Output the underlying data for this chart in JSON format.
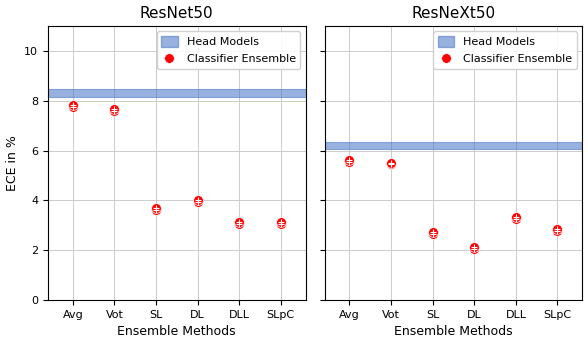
{
  "resnet50": {
    "title": "ResNet50",
    "band_low": 8.15,
    "band_high": 8.45,
    "categories": [
      "Avg",
      "Vot",
      "SL",
      "DL",
      "DLL",
      "SLpC"
    ],
    "points": [
      [
        7.75,
        7.82
      ],
      [
        7.58,
        7.65
      ],
      [
        3.62,
        3.68
      ],
      [
        3.95,
        4.02
      ],
      [
        3.05,
        3.12
      ],
      [
        3.05,
        3.12
      ]
    ]
  },
  "resnext50": {
    "title": "ResNeXt50",
    "band_low": 6.05,
    "band_high": 6.35,
    "categories": [
      "Avg",
      "Vot",
      "SL",
      "DL",
      "DLL",
      "SLpC"
    ],
    "points": [
      [
        5.55,
        5.62
      ],
      [
        5.45,
        5.52
      ],
      [
        2.65,
        2.72
      ],
      [
        2.05,
        2.12
      ],
      [
        3.25,
        3.32
      ],
      [
        2.78,
        2.85
      ]
    ]
  },
  "band_color": "#4472C4",
  "band_alpha": 0.55,
  "point_color": "red",
  "point_size": 50,
  "ylabel": "ECE in %",
  "xlabel": "Ensemble Methods",
  "ylim": [
    0,
    11
  ],
  "yticks": [
    0,
    2,
    4,
    6,
    8,
    10
  ],
  "legend_band_label": "Head Models",
  "legend_point_label": "Classifier Ensemble",
  "background_color": "white",
  "grid_color": "#cccccc",
  "title_fontsize": 11,
  "tick_fontsize": 8,
  "label_fontsize": 9,
  "legend_fontsize": 8
}
